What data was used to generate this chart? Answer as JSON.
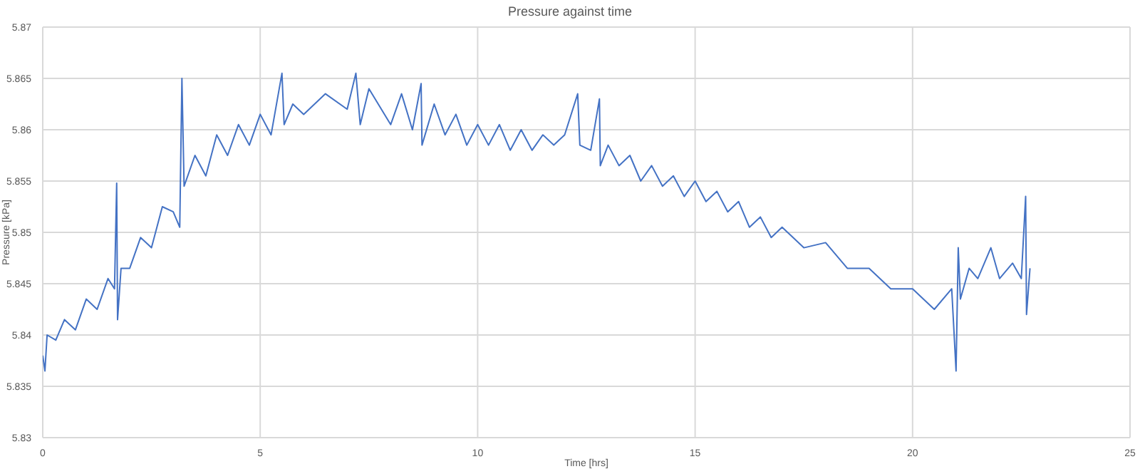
{
  "chart_data": {
    "type": "line",
    "title": "Pressure against time",
    "xlabel": "Time [hrs]",
    "ylabel": "Pressure [kPa]",
    "x": [
      0,
      0.05,
      0.1,
      0.3,
      0.5,
      0.75,
      1.0,
      1.25,
      1.5,
      1.65,
      1.7,
      1.72,
      1.8,
      2.0,
      2.25,
      2.5,
      2.75,
      3.0,
      3.15,
      3.2,
      3.25,
      3.5,
      3.75,
      4.0,
      4.25,
      4.5,
      4.75,
      5.0,
      5.25,
      5.5,
      5.55,
      5.75,
      6.0,
      6.5,
      7.0,
      7.2,
      7.3,
      7.5,
      8.0,
      8.25,
      8.5,
      8.7,
      8.72,
      9.0,
      9.25,
      9.5,
      9.75,
      10.0,
      10.25,
      10.5,
      10.75,
      11.0,
      11.25,
      11.5,
      11.75,
      12.0,
      12.3,
      12.35,
      12.6,
      12.8,
      12.82,
      13.0,
      13.25,
      13.5,
      13.75,
      14.0,
      14.25,
      14.5,
      14.75,
      15.0,
      15.25,
      15.5,
      15.75,
      16.0,
      16.25,
      16.5,
      16.75,
      17.0,
      17.5,
      18.0,
      18.5,
      19.0,
      19.5,
      20.0,
      20.5,
      20.9,
      21.0,
      21.05,
      21.1,
      21.3,
      21.5,
      21.8,
      22.0,
      22.3,
      22.5,
      22.6,
      22.62,
      22.7
    ],
    "series": [
      {
        "color": "#4472c4",
        "values": [
          5.838,
          5.8365,
          5.84,
          5.8395,
          5.8415,
          5.8405,
          5.8435,
          5.8425,
          5.8455,
          5.8445,
          5.8548,
          5.8415,
          5.8465,
          5.8465,
          5.8495,
          5.8485,
          5.8525,
          5.852,
          5.8505,
          5.865,
          5.8545,
          5.8575,
          5.8555,
          5.8595,
          5.8575,
          5.8605,
          5.8585,
          5.8615,
          5.8595,
          5.8655,
          5.8605,
          5.8625,
          5.8615,
          5.8635,
          5.862,
          5.8655,
          5.8605,
          5.864,
          5.8605,
          5.8635,
          5.86,
          5.8645,
          5.8585,
          5.8625,
          5.8595,
          5.8615,
          5.8585,
          5.8605,
          5.8585,
          5.8605,
          5.858,
          5.86,
          5.858,
          5.8595,
          5.8585,
          5.8595,
          5.8635,
          5.8585,
          5.858,
          5.863,
          5.8565,
          5.8585,
          5.8565,
          5.8575,
          5.855,
          5.8565,
          5.8545,
          5.8555,
          5.8535,
          5.855,
          5.853,
          5.854,
          5.852,
          5.853,
          5.8505,
          5.8515,
          5.8495,
          5.8505,
          5.8485,
          5.849,
          5.8465,
          5.8465,
          5.8445,
          5.8445,
          5.8425,
          5.8445,
          5.8365,
          5.8485,
          5.8435,
          5.8465,
          5.8455,
          5.8485,
          5.8455,
          5.847,
          5.8455,
          5.8535,
          5.842,
          5.8465
        ]
      }
    ],
    "xlim": [
      0,
      25
    ],
    "xticks": [
      0,
      5,
      10,
      15,
      20,
      25
    ],
    "ylim": [
      5.83,
      5.87
    ],
    "yticks": [
      5.83,
      5.835,
      5.84,
      5.845,
      5.85,
      5.855,
      5.86,
      5.865,
      5.87
    ],
    "grid": true,
    "marker": "none",
    "line_style": "solid"
  }
}
